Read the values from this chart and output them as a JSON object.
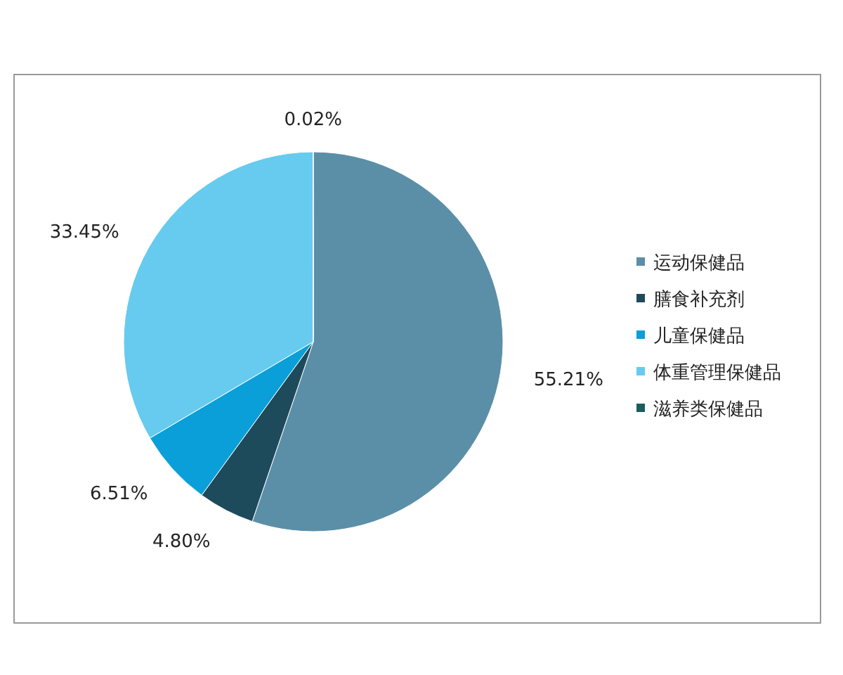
{
  "chart_data": {
    "type": "pie",
    "categories": [
      "运动保健品",
      "膳食补充剂",
      "儿童保健品",
      "体重管理保健品",
      "滋养类保健品"
    ],
    "values": [
      55.21,
      4.8,
      6.51,
      33.45,
      0.02
    ],
    "colors": [
      "#5b8fa8",
      "#1d4b5c",
      "#0a9fd8",
      "#66cbee",
      "#1b5e5e"
    ],
    "value_labels": [
      "55.21%",
      "4.80%",
      "6.51%",
      "33.45%",
      "0.02%"
    ],
    "legend": "right"
  }
}
